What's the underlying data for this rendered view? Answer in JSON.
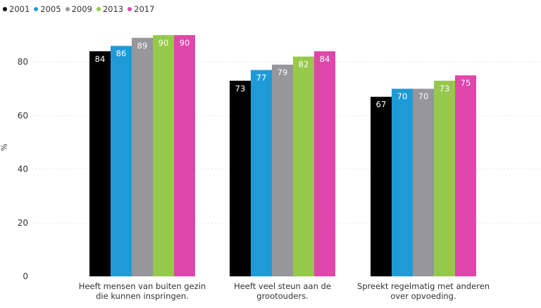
{
  "chart_data": {
    "type": "bar",
    "categories": [
      [
        "Heeft mensen van buiten gezin",
        "die kunnen inspringen."
      ],
      [
        "Heeft veel steun aan de",
        "grootouders."
      ],
      [
        "Spreekt regelmatig met anderen",
        "over opvoeding."
      ]
    ],
    "series": [
      {
        "name": "2001",
        "values": [
          84,
          73,
          67
        ],
        "labels": [
          "84",
          "73",
          "67"
        ],
        "color": "#000000"
      },
      {
        "name": "2005",
        "values": [
          86,
          77,
          70
        ],
        "labels": [
          "86",
          "77",
          "70"
        ],
        "color": "#1E9BD7"
      },
      {
        "name": "2009",
        "values": [
          89,
          79,
          70
        ],
        "labels": [
          "89",
          "79",
          "70"
        ],
        "color": "#96969B"
      },
      {
        "name": "2013",
        "values": [
          90,
          82,
          73
        ],
        "labels": [
          "90",
          "82",
          "73"
        ],
        "color": "#96C84B"
      },
      {
        "name": "2017",
        "values": [
          90,
          84,
          75
        ],
        "labels": [
          "90",
          "84",
          "75"
        ],
        "color": "#E146AA"
      }
    ],
    "ylabel": "%",
    "ylim": [
      0,
      90
    ],
    "yticks": [
      0,
      20,
      40,
      60,
      80
    ],
    "grid": true,
    "legend_position": "top-left"
  }
}
